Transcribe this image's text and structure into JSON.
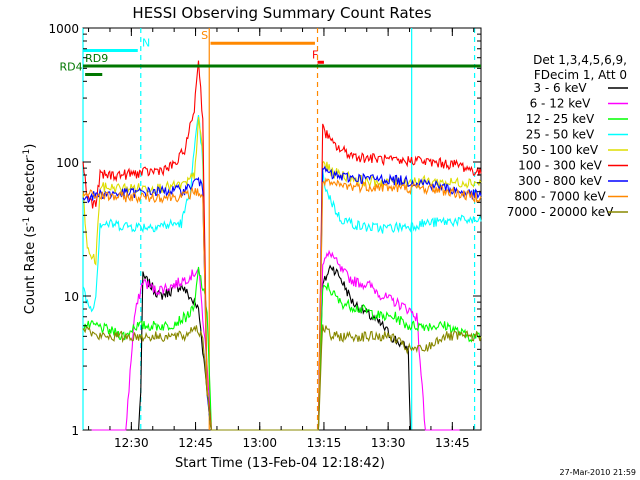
{
  "chart_data": {
    "type": "line",
    "title": "HESSI Observing Summary Count Rates",
    "xlabel": "Start Time (13-Feb-04 12:18:42)",
    "ylabel_main": "Count Rate (s",
    "ylabel_sup": "-1",
    "ylabel_mid": " detector",
    "ylabel_sup2": "-1",
    "ylabel_end": ")",
    "y_scale": "log",
    "ylim": [
      1,
      1000
    ],
    "xlim_minutes": [
      0,
      93
    ],
    "y_ticks": [
      {
        "value": 1,
        "label": "1"
      },
      {
        "value": 10,
        "label": "10"
      },
      {
        "value": 100,
        "label": "100"
      },
      {
        "value": 1000,
        "label": "1000"
      }
    ],
    "x_ticks": [
      {
        "minute": 11.3,
        "label": "12:30"
      },
      {
        "minute": 26.3,
        "label": "12:45"
      },
      {
        "minute": 41.3,
        "label": "13:00"
      },
      {
        "minute": 56.3,
        "label": "13:15"
      },
      {
        "minute": 71.3,
        "label": "13:30"
      },
      {
        "minute": 86.3,
        "label": "13:45"
      }
    ],
    "legend_header": [
      "Det 1,3,4,5,6,9,",
      "FDecim 1, Att 0"
    ],
    "series": [
      {
        "name": "3 - 6 keV",
        "color": "#000000",
        "points": [
          [
            2,
            1
          ],
          [
            10,
            1
          ],
          [
            13,
            1
          ],
          [
            13.5,
            2
          ],
          [
            14,
            14
          ],
          [
            18,
            10
          ],
          [
            23,
            12
          ],
          [
            27,
            8
          ],
          [
            29,
            2
          ],
          [
            30,
            1
          ],
          [
            55,
            1
          ],
          [
            56,
            12
          ],
          [
            58,
            17
          ],
          [
            60,
            14
          ],
          [
            63,
            9
          ],
          [
            65,
            8
          ],
          [
            70,
            6
          ],
          [
            72,
            5
          ],
          [
            76,
            4
          ],
          [
            76.5,
            1
          ],
          [
            80,
            1
          ],
          [
            81,
            1
          ]
        ]
      },
      {
        "name": "6 - 12 keV",
        "color": "#ff00ff",
        "points": [
          [
            2,
            1
          ],
          [
            10,
            1
          ],
          [
            12,
            7
          ],
          [
            14,
            13
          ],
          [
            17,
            11
          ],
          [
            21,
            12
          ],
          [
            25,
            14
          ],
          [
            27,
            16
          ],
          [
            29,
            3
          ],
          [
            30,
            1
          ],
          [
            55,
            1
          ],
          [
            56,
            18
          ],
          [
            58,
            21
          ],
          [
            60,
            16
          ],
          [
            63,
            13
          ],
          [
            67,
            12
          ],
          [
            70,
            10
          ],
          [
            73,
            9
          ],
          [
            76,
            8
          ],
          [
            78,
            7
          ],
          [
            80,
            1
          ],
          [
            88,
            1
          ]
        ]
      },
      {
        "name": "12 - 25 keV",
        "color": "#00ff00",
        "points": [
          [
            0,
            6
          ],
          [
            3,
            6
          ],
          [
            10,
            5
          ],
          [
            12,
            6
          ],
          [
            15,
            6
          ],
          [
            20,
            6
          ],
          [
            24,
            7
          ],
          [
            26,
            8
          ],
          [
            27,
            16
          ],
          [
            29,
            8
          ],
          [
            30,
            1
          ],
          [
            55,
            1
          ],
          [
            56,
            11
          ],
          [
            57,
            12
          ],
          [
            60,
            9
          ],
          [
            65,
            8
          ],
          [
            70,
            7
          ],
          [
            73,
            7
          ],
          [
            76,
            6
          ],
          [
            80,
            6
          ],
          [
            85,
            6
          ],
          [
            90,
            5
          ],
          [
            93,
            5
          ]
        ]
      },
      {
        "name": "25 - 50 keV",
        "color": "#00ffff",
        "points": [
          [
            0,
            12
          ],
          [
            1,
            9
          ],
          [
            2,
            8
          ],
          [
            3,
            10
          ],
          [
            4,
            35
          ],
          [
            8,
            34
          ],
          [
            12,
            33
          ],
          [
            16,
            33
          ],
          [
            20,
            34
          ],
          [
            23,
            35
          ],
          [
            25,
            60
          ],
          [
            26,
            120
          ],
          [
            27,
            220
          ],
          [
            28,
            100
          ],
          [
            29,
            2
          ],
          [
            30,
            1
          ],
          [
            55,
            1
          ],
          [
            56,
            80
          ],
          [
            57,
            60
          ],
          [
            60,
            38
          ],
          [
            65,
            33
          ],
          [
            70,
            32
          ],
          [
            75,
            33
          ],
          [
            80,
            35
          ],
          [
            85,
            36
          ],
          [
            90,
            37
          ],
          [
            93,
            36
          ]
        ]
      },
      {
        "name": "50 - 100 keV",
        "color": "#dddd00",
        "points": [
          [
            0,
            60
          ],
          [
            1,
            22
          ],
          [
            2,
            20
          ],
          [
            3,
            18
          ],
          [
            4,
            65
          ],
          [
            8,
            64
          ],
          [
            12,
            64
          ],
          [
            16,
            64
          ],
          [
            20,
            65
          ],
          [
            24,
            68
          ],
          [
            26,
            80
          ],
          [
            27,
            200
          ],
          [
            28,
            120
          ],
          [
            29,
            2
          ],
          [
            30,
            1
          ],
          [
            55,
            1
          ],
          [
            56,
            100
          ],
          [
            58,
            85
          ],
          [
            62,
            78
          ],
          [
            66,
            72
          ],
          [
            70,
            71
          ],
          [
            75,
            72
          ],
          [
            80,
            72
          ],
          [
            85,
            70
          ],
          [
            90,
            71
          ],
          [
            93,
            70
          ]
        ]
      },
      {
        "name": "100 - 300 keV",
        "color": "#ff0000",
        "points": [
          [
            0,
            100
          ],
          [
            1,
            55
          ],
          [
            2,
            50
          ],
          [
            3,
            48
          ],
          [
            4,
            80
          ],
          [
            8,
            80
          ],
          [
            12,
            82
          ],
          [
            16,
            85
          ],
          [
            20,
            90
          ],
          [
            22,
            100
          ],
          [
            24,
            130
          ],
          [
            26,
            250
          ],
          [
            27,
            600
          ],
          [
            28,
            200
          ],
          [
            29,
            2
          ],
          [
            30,
            1
          ],
          [
            55,
            1
          ],
          [
            56,
            180
          ],
          [
            57,
            160
          ],
          [
            58,
            140
          ],
          [
            60,
            125
          ],
          [
            63,
            112
          ],
          [
            66,
            108
          ],
          [
            70,
            105
          ],
          [
            74,
            100
          ],
          [
            78,
            105
          ],
          [
            80,
            100
          ],
          [
            84,
            98
          ],
          [
            88,
            95
          ],
          [
            93,
            82
          ]
        ]
      },
      {
        "name": "300 - 800 keV",
        "color": "#0000ff",
        "points": [
          [
            0,
            55
          ],
          [
            2,
            55
          ],
          [
            4,
            58
          ],
          [
            8,
            58
          ],
          [
            12,
            59
          ],
          [
            16,
            60
          ],
          [
            20,
            61
          ],
          [
            24,
            62
          ],
          [
            26,
            70
          ],
          [
            27,
            75
          ],
          [
            28,
            60
          ],
          [
            29,
            2
          ],
          [
            30,
            1
          ],
          [
            55,
            1
          ],
          [
            56,
            90
          ],
          [
            58,
            80
          ],
          [
            60,
            78
          ],
          [
            64,
            76
          ],
          [
            68,
            75
          ],
          [
            72,
            74
          ],
          [
            76,
            72
          ],
          [
            80,
            70
          ],
          [
            84,
            65
          ],
          [
            88,
            60
          ],
          [
            93,
            56
          ]
        ]
      },
      {
        "name": "800 - 7000 keV",
        "color": "#ff8800",
        "points": [
          [
            0,
            58
          ],
          [
            2,
            57
          ],
          [
            4,
            56
          ],
          [
            8,
            55
          ],
          [
            12,
            55
          ],
          [
            16,
            55
          ],
          [
            20,
            55
          ],
          [
            24,
            56
          ],
          [
            26,
            60
          ],
          [
            27,
            60
          ],
          [
            28,
            55
          ],
          [
            29,
            2
          ],
          [
            30,
            1
          ],
          [
            55,
            1
          ],
          [
            56,
            70
          ],
          [
            58,
            68
          ],
          [
            62,
            66
          ],
          [
            66,
            66
          ],
          [
            70,
            65
          ],
          [
            74,
            64
          ],
          [
            78,
            64
          ],
          [
            82,
            63
          ],
          [
            86,
            60
          ],
          [
            90,
            56
          ],
          [
            93,
            55
          ]
        ]
      },
      {
        "name": "7000 - 20000 keV",
        "color": "#888800",
        "points": [
          [
            0,
            6
          ],
          [
            3,
            5
          ],
          [
            8,
            5
          ],
          [
            12,
            5
          ],
          [
            15,
            5
          ],
          [
            20,
            5
          ],
          [
            24,
            5
          ],
          [
            26,
            6
          ],
          [
            28,
            5
          ],
          [
            29,
            2
          ],
          [
            30,
            1
          ],
          [
            55,
            1
          ],
          [
            56,
            6
          ],
          [
            58,
            5
          ],
          [
            60,
            5
          ],
          [
            64,
            5
          ],
          [
            68,
            5
          ],
          [
            72,
            5
          ],
          [
            76,
            4
          ],
          [
            80,
            4
          ],
          [
            84,
            5
          ],
          [
            88,
            5
          ],
          [
            93,
            5
          ]
        ]
      }
    ],
    "vertical_lines": [
      {
        "minute": 0,
        "color": "#00ffff",
        "dash": false
      },
      {
        "minute": 13.5,
        "color": "#00ffff",
        "dash": true
      },
      {
        "minute": 29.5,
        "color": "#ff8800",
        "dash": false
      },
      {
        "minute": 54.8,
        "color": "#ff8800",
        "dash": true
      },
      {
        "minute": 76.8,
        "color": "#00ffff",
        "dash": false
      },
      {
        "minute": 91.5,
        "color": "#00ffff",
        "dash": true
      }
    ],
    "annotations": [
      {
        "label": "N",
        "color": "#00ffff",
        "minute": 13.8,
        "value": 680,
        "bar": [
          0,
          12.8
        ]
      },
      {
        "label": "S",
        "color": "#ff8800",
        "minute": 27.6,
        "value": 770,
        "bar": [
          29.8,
          54.2
        ]
      },
      {
        "label": "F",
        "color": "#ff0000",
        "minute": 53.5,
        "value": 555,
        "bar": [
          54.8,
          56.3
        ]
      },
      {
        "label": "RD9",
        "color": "#007700",
        "minute": 0.5,
        "value": 520,
        "bar": [
          0,
          93
        ]
      },
      {
        "label": "RD4",
        "color": "#007700",
        "minute": -5.5,
        "value": 450,
        "bar": [
          0.5,
          4.5
        ]
      }
    ],
    "timestamp": "27-Mar-2010 21:59"
  }
}
